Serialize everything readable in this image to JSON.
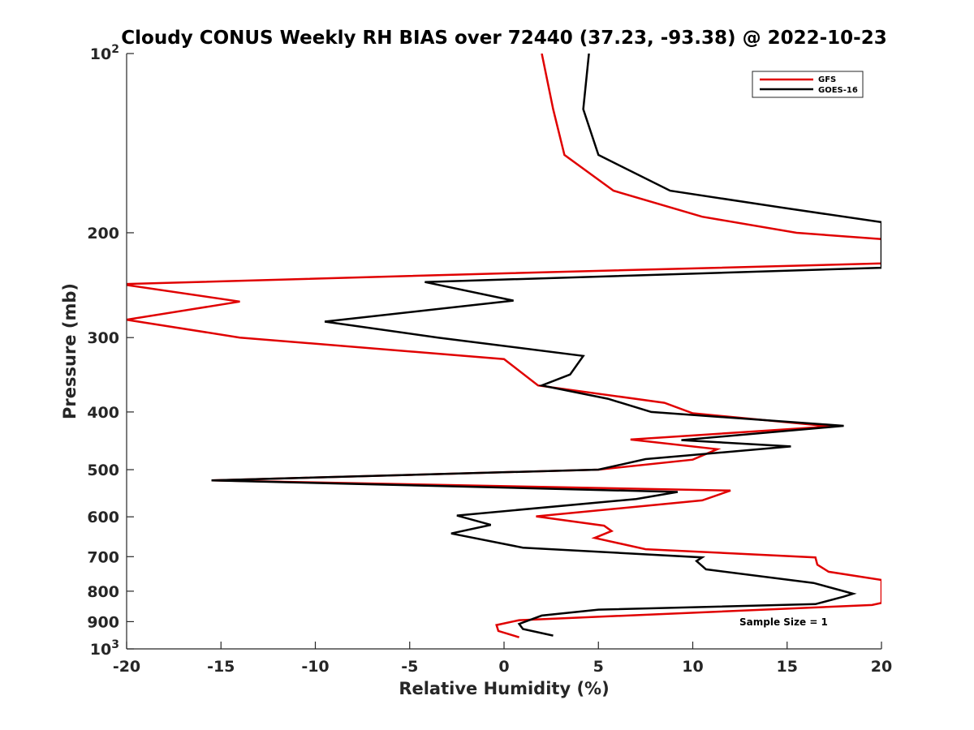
{
  "chart_data": {
    "type": "line",
    "title": "Cloudy CONUS Weekly RH BIAS over 72440 (37.23, -93.38) @ 2022-10-23",
    "xlabel": "Relative Humidity (%)",
    "ylabel": "Pressure (mb)",
    "xlim": [
      -20,
      20
    ],
    "ylim": [
      100,
      1000
    ],
    "y_scale": "log",
    "y_reversed": true,
    "grid": false,
    "legend_position": "top-right",
    "x_ticks": [
      "-20",
      "-15",
      "-10",
      "-5",
      "0",
      "5",
      "10",
      "15",
      "20"
    ],
    "y_ticks": [
      {
        "base": "10",
        "exp": "2"
      },
      {
        "base": "200",
        "exp": ""
      },
      {
        "base": "300",
        "exp": ""
      },
      {
        "base": "400",
        "exp": ""
      },
      {
        "base": "500",
        "exp": ""
      },
      {
        "base": "600",
        "exp": ""
      },
      {
        "base": "700",
        "exp": ""
      },
      {
        "base": "800",
        "exp": ""
      },
      {
        "base": "900",
        "exp": ""
      },
      {
        "base": "10",
        "exp": "3"
      }
    ],
    "series": [
      {
        "name": "GFS",
        "color": "#e00000",
        "points": [
          {
            "x": 2.0,
            "y": 100
          },
          {
            "x": 2.6,
            "y": 124
          },
          {
            "x": 3.2,
            "y": 148
          },
          {
            "x": 5.8,
            "y": 170
          },
          {
            "x": 10.5,
            "y": 188
          },
          {
            "x": 15.5,
            "y": 200
          },
          {
            "x": 20.0,
            "y": 205
          },
          {
            "x": 20.5,
            "y": 225
          },
          {
            "x": 0.0,
            "y": 234
          },
          {
            "x": -20.3,
            "y": 244
          },
          {
            "x": -14.0,
            "y": 261
          },
          {
            "x": -20.0,
            "y": 280
          },
          {
            "x": -14.0,
            "y": 300
          },
          {
            "x": 0.0,
            "y": 326
          },
          {
            "x": 1.8,
            "y": 361
          },
          {
            "x": 8.5,
            "y": 386
          },
          {
            "x": 10.0,
            "y": 402
          },
          {
            "x": 17.3,
            "y": 423
          },
          {
            "x": 6.7,
            "y": 445
          },
          {
            "x": 11.3,
            "y": 462
          },
          {
            "x": 10.0,
            "y": 481
          },
          {
            "x": 5.0,
            "y": 500
          },
          {
            "x": -15.5,
            "y": 521
          },
          {
            "x": 12.0,
            "y": 542
          },
          {
            "x": 10.5,
            "y": 563
          },
          {
            "x": 1.7,
            "y": 599
          },
          {
            "x": 5.3,
            "y": 621
          },
          {
            "x": 5.7,
            "y": 634
          },
          {
            "x": 4.8,
            "y": 651
          },
          {
            "x": 7.5,
            "y": 680
          },
          {
            "x": 16.5,
            "y": 702
          },
          {
            "x": 16.6,
            "y": 722
          },
          {
            "x": 17.2,
            "y": 742
          },
          {
            "x": 20.0,
            "y": 766
          },
          {
            "x": 20.0,
            "y": 837
          },
          {
            "x": 19.5,
            "y": 844
          },
          {
            "x": 0.8,
            "y": 895
          },
          {
            "x": -0.4,
            "y": 912
          },
          {
            "x": -0.3,
            "y": 933
          },
          {
            "x": 0.8,
            "y": 956
          }
        ]
      },
      {
        "name": "GOES-16",
        "color": "#000000",
        "points": [
          {
            "x": 4.5,
            "y": 100
          },
          {
            "x": 4.2,
            "y": 124
          },
          {
            "x": 5.0,
            "y": 148
          },
          {
            "x": 8.8,
            "y": 170
          },
          {
            "x": 15.0,
            "y": 182
          },
          {
            "x": 20.0,
            "y": 192
          },
          {
            "x": 20.0,
            "y": 229
          },
          {
            "x": -4.2,
            "y": 242
          },
          {
            "x": 0.5,
            "y": 260
          },
          {
            "x": -9.5,
            "y": 282
          },
          {
            "x": -3.5,
            "y": 300
          },
          {
            "x": 4.2,
            "y": 322
          },
          {
            "x": 3.5,
            "y": 346
          },
          {
            "x": 2.0,
            "y": 361
          },
          {
            "x": 5.5,
            "y": 380
          },
          {
            "x": 7.8,
            "y": 400
          },
          {
            "x": 18.0,
            "y": 422
          },
          {
            "x": 9.4,
            "y": 446
          },
          {
            "x": 15.2,
            "y": 457
          },
          {
            "x": 7.5,
            "y": 480
          },
          {
            "x": 5.0,
            "y": 500
          },
          {
            "x": -15.5,
            "y": 521
          },
          {
            "x": 9.2,
            "y": 545
          },
          {
            "x": 7.0,
            "y": 560
          },
          {
            "x": -2.5,
            "y": 597
          },
          {
            "x": -0.7,
            "y": 619
          },
          {
            "x": -2.8,
            "y": 640
          },
          {
            "x": 1.0,
            "y": 676
          },
          {
            "x": 10.5,
            "y": 702
          },
          {
            "x": 10.2,
            "y": 712
          },
          {
            "x": 10.7,
            "y": 735
          },
          {
            "x": 16.4,
            "y": 775
          },
          {
            "x": 18.5,
            "y": 808
          },
          {
            "x": 18.0,
            "y": 817
          },
          {
            "x": 16.5,
            "y": 841
          },
          {
            "x": 5.0,
            "y": 859
          },
          {
            "x": 2.0,
            "y": 879
          },
          {
            "x": 0.8,
            "y": 908
          },
          {
            "x": 1.0,
            "y": 926
          },
          {
            "x": 2.6,
            "y": 950
          }
        ]
      }
    ],
    "annotation": "Sample Size = 1"
  }
}
